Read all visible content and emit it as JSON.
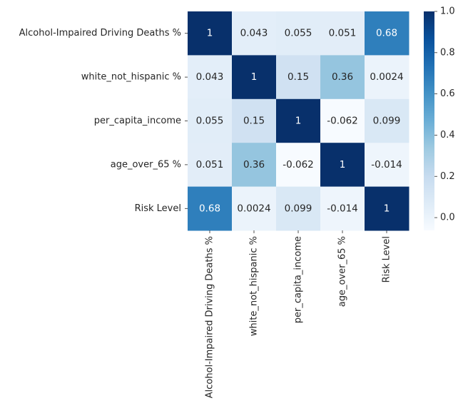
{
  "chart_data": {
    "type": "heatmap",
    "title": "",
    "xlabel": "",
    "ylabel": "",
    "x_labels": [
      "Alcohol-Impaired Driving Deaths %",
      "white_not_hispanic %",
      "per_capita_income",
      "age_over_65 %",
      "Risk Level"
    ],
    "y_labels": [
      "Alcohol-Impaired Driving Deaths %",
      "white_not_hispanic %",
      "per_capita_income",
      "age_over_65 %",
      "Risk Level"
    ],
    "values": [
      [
        1,
        0.043,
        0.055,
        0.051,
        0.68
      ],
      [
        0.043,
        1,
        0.15,
        0.36,
        0.0024
      ],
      [
        0.055,
        0.15,
        1,
        -0.062,
        0.099
      ],
      [
        0.051,
        0.36,
        -0.062,
        1,
        -0.014
      ],
      [
        0.68,
        0.0024,
        0.099,
        -0.014,
        1
      ]
    ],
    "annotations": [
      [
        "1",
        "0.043",
        "0.055",
        "0.051",
        "0.68"
      ],
      [
        "0.043",
        "1",
        "0.15",
        "0.36",
        "0.0024"
      ],
      [
        "0.055",
        "0.15",
        "1",
        "-0.062",
        "0.099"
      ],
      [
        "0.051",
        "0.36",
        "-0.062",
        "1",
        "-0.014"
      ],
      [
        "0.68",
        "0.0024",
        "0.099",
        "-0.014",
        "1"
      ]
    ],
    "colormap": "Blues",
    "vmin": -0.062,
    "vmax": 1,
    "colorbar": {
      "ticks": [
        0.0,
        0.2,
        0.4,
        0.6,
        0.8,
        1.0
      ],
      "tick_labels": [
        "0.0",
        "0.2",
        "0.4",
        "0.6",
        "0.8",
        "1.0"
      ]
    }
  }
}
